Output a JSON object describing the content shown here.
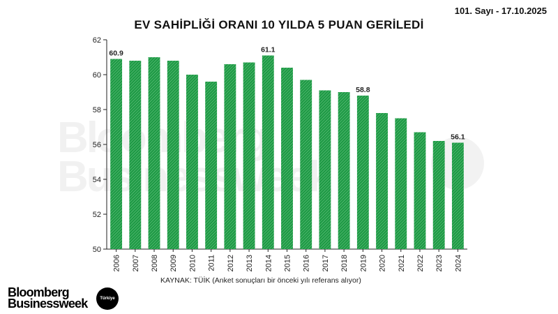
{
  "header": {
    "issue": "101. Sayı - 17.10.2025"
  },
  "chart_data": {
    "type": "bar",
    "title": "EV SAHİPLİĞİ ORANI 10 YILDA 5 PUAN GERİLEDİ",
    "categories": [
      "2006",
      "2007",
      "2008",
      "2009",
      "2010",
      "2011",
      "2012",
      "2013",
      "2014",
      "2015",
      "2016",
      "2017",
      "2018",
      "2019",
      "2020",
      "2021",
      "2022",
      "2023",
      "2024"
    ],
    "values": [
      60.9,
      60.8,
      61.0,
      60.8,
      60.0,
      59.6,
      60.6,
      60.7,
      61.1,
      60.4,
      59.7,
      59.1,
      59.0,
      58.8,
      57.8,
      57.5,
      56.7,
      56.2,
      56.1
    ],
    "data_labels": {
      "2006": "60.9",
      "2014": "61.1",
      "2019": "58.8",
      "2024": "56.1"
    },
    "ylim": [
      50,
      62
    ],
    "yticks": [
      50,
      52,
      54,
      56,
      58,
      60,
      62
    ],
    "xlabel": "",
    "ylabel": "",
    "grid": false,
    "bar_color": "#1e9a45",
    "source": "KAYNAK: TÜİK (Anket sonuçları bir önceki yılı referans alıyor)"
  },
  "branding": {
    "logo_line1": "Bloomberg",
    "logo_line2": "Businessweek",
    "badge": "Türkiye"
  }
}
